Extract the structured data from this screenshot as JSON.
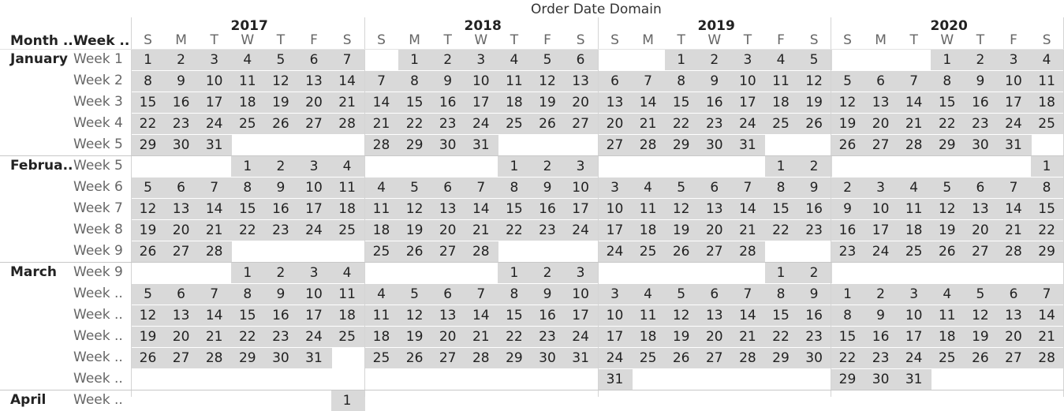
{
  "title": "Order Date Domain",
  "headers": {
    "month": "Month ..",
    "week": "Week .."
  },
  "years": [
    "2017",
    "2018",
    "2019",
    "2020"
  ],
  "day_letters": [
    "S",
    "M",
    "T",
    "W",
    "T",
    "F",
    "S"
  ],
  "colors": {
    "cell": "#d9d9d9",
    "grid": "#d4d4d4",
    "text": "#222222",
    "muted": "#666666"
  },
  "months": [
    {
      "name": "January",
      "rows": [
        {
          "week": "Week 1",
          "days": [
            [
              1,
              2,
              3,
              4,
              5,
              6,
              7
            ],
            [
              null,
              1,
              2,
              3,
              4,
              5,
              6
            ],
            [
              null,
              null,
              1,
              2,
              3,
              4,
              5
            ],
            [
              null,
              null,
              null,
              1,
              2,
              3,
              4
            ]
          ]
        },
        {
          "week": "Week 2",
          "days": [
            [
              8,
              9,
              10,
              11,
              12,
              13,
              14
            ],
            [
              7,
              8,
              9,
              10,
              11,
              12,
              13
            ],
            [
              6,
              7,
              8,
              9,
              10,
              11,
              12
            ],
            [
              5,
              6,
              7,
              8,
              9,
              10,
              11
            ]
          ]
        },
        {
          "week": "Week 3",
          "days": [
            [
              15,
              16,
              17,
              18,
              19,
              20,
              21
            ],
            [
              14,
              15,
              16,
              17,
              18,
              19,
              20
            ],
            [
              13,
              14,
              15,
              16,
              17,
              18,
              19
            ],
            [
              12,
              13,
              14,
              15,
              16,
              17,
              18
            ]
          ]
        },
        {
          "week": "Week 4",
          "days": [
            [
              22,
              23,
              24,
              25,
              26,
              27,
              28
            ],
            [
              21,
              22,
              23,
              24,
              25,
              26,
              27
            ],
            [
              20,
              21,
              22,
              23,
              24,
              25,
              26
            ],
            [
              19,
              20,
              21,
              22,
              23,
              24,
              25
            ]
          ]
        },
        {
          "week": "Week 5",
          "days": [
            [
              29,
              30,
              31,
              null,
              null,
              null,
              null
            ],
            [
              28,
              29,
              30,
              31,
              null,
              null,
              null
            ],
            [
              27,
              28,
              29,
              30,
              31,
              null,
              null
            ],
            [
              26,
              27,
              28,
              29,
              30,
              31,
              null
            ]
          ]
        }
      ]
    },
    {
      "name": "Februa..",
      "rows": [
        {
          "week": "Week 5",
          "days": [
            [
              null,
              null,
              null,
              1,
              2,
              3,
              4
            ],
            [
              null,
              null,
              null,
              null,
              1,
              2,
              3
            ],
            [
              null,
              null,
              null,
              null,
              null,
              1,
              2
            ],
            [
              null,
              null,
              null,
              null,
              null,
              null,
              1
            ]
          ]
        },
        {
          "week": "Week 6",
          "days": [
            [
              5,
              6,
              7,
              8,
              9,
              10,
              11
            ],
            [
              4,
              5,
              6,
              7,
              8,
              9,
              10
            ],
            [
              3,
              4,
              5,
              6,
              7,
              8,
              9
            ],
            [
              2,
              3,
              4,
              5,
              6,
              7,
              8
            ]
          ]
        },
        {
          "week": "Week 7",
          "days": [
            [
              12,
              13,
              14,
              15,
              16,
              17,
              18
            ],
            [
              11,
              12,
              13,
              14,
              15,
              16,
              17
            ],
            [
              10,
              11,
              12,
              13,
              14,
              15,
              16
            ],
            [
              9,
              10,
              11,
              12,
              13,
              14,
              15
            ]
          ]
        },
        {
          "week": "Week 8",
          "days": [
            [
              19,
              20,
              21,
              22,
              23,
              24,
              25
            ],
            [
              18,
              19,
              20,
              21,
              22,
              23,
              24
            ],
            [
              17,
              18,
              19,
              20,
              21,
              22,
              23
            ],
            [
              16,
              17,
              18,
              19,
              20,
              21,
              22
            ]
          ]
        },
        {
          "week": "Week 9",
          "days": [
            [
              26,
              27,
              28,
              null,
              null,
              null,
              null
            ],
            [
              25,
              26,
              27,
              28,
              null,
              null,
              null
            ],
            [
              24,
              25,
              26,
              27,
              28,
              null,
              null
            ],
            [
              23,
              24,
              25,
              26,
              27,
              28,
              29
            ]
          ]
        }
      ]
    },
    {
      "name": "March",
      "rows": [
        {
          "week": "Week 9",
          "days": [
            [
              null,
              null,
              null,
              1,
              2,
              3,
              4
            ],
            [
              null,
              null,
              null,
              null,
              1,
              2,
              3
            ],
            [
              null,
              null,
              null,
              null,
              null,
              1,
              2
            ],
            [
              null,
              null,
              null,
              null,
              null,
              null,
              null
            ]
          ]
        },
        {
          "week": "Week ..",
          "days": [
            [
              5,
              6,
              7,
              8,
              9,
              10,
              11
            ],
            [
              4,
              5,
              6,
              7,
              8,
              9,
              10
            ],
            [
              3,
              4,
              5,
              6,
              7,
              8,
              9
            ],
            [
              1,
              2,
              3,
              4,
              5,
              6,
              7
            ]
          ]
        },
        {
          "week": "Week ..",
          "days": [
            [
              12,
              13,
              14,
              15,
              16,
              17,
              18
            ],
            [
              11,
              12,
              13,
              14,
              15,
              16,
              17
            ],
            [
              10,
              11,
              12,
              13,
              14,
              15,
              16
            ],
            [
              8,
              9,
              10,
              11,
              12,
              13,
              14
            ]
          ]
        },
        {
          "week": "Week ..",
          "days": [
            [
              19,
              20,
              21,
              22,
              23,
              24,
              25
            ],
            [
              18,
              19,
              20,
              21,
              22,
              23,
              24
            ],
            [
              17,
              18,
              19,
              20,
              21,
              22,
              23
            ],
            [
              15,
              16,
              17,
              18,
              19,
              20,
              21
            ]
          ]
        },
        {
          "week": "Week ..",
          "days": [
            [
              26,
              27,
              28,
              29,
              30,
              31,
              null
            ],
            [
              25,
              26,
              27,
              28,
              29,
              30,
              31
            ],
            [
              24,
              25,
              26,
              27,
              28,
              29,
              30
            ],
            [
              22,
              23,
              24,
              25,
              26,
              27,
              28
            ]
          ]
        },
        {
          "week": "Week ..",
          "days": [
            [
              null,
              null,
              null,
              null,
              null,
              null,
              null
            ],
            [
              null,
              null,
              null,
              null,
              null,
              null,
              null
            ],
            [
              31,
              null,
              null,
              null,
              null,
              null,
              null
            ],
            [
              29,
              30,
              31,
              null,
              null,
              null,
              null
            ]
          ]
        }
      ]
    },
    {
      "name": "April",
      "rows": [
        {
          "week": "Week ..",
          "days": [
            [
              null,
              null,
              null,
              null,
              null,
              null,
              1
            ],
            [
              null,
              null,
              null,
              null,
              null,
              null,
              null
            ],
            [
              null,
              null,
              null,
              null,
              null,
              null,
              null
            ],
            [
              null,
              null,
              null,
              null,
              null,
              null,
              null
            ]
          ]
        }
      ]
    }
  ]
}
